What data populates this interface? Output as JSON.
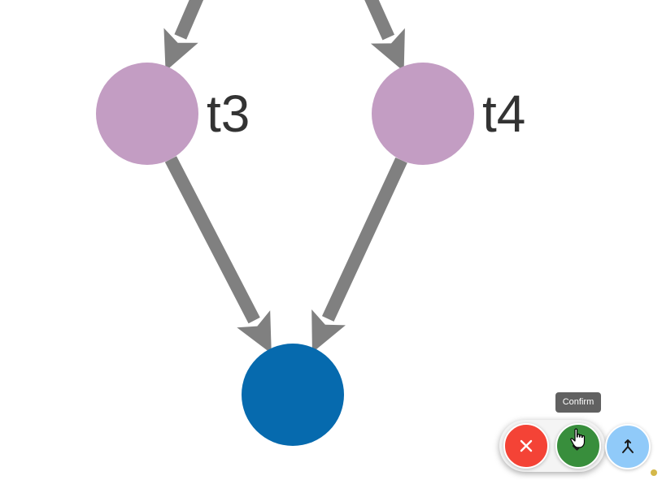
{
  "graph": {
    "nodes": [
      {
        "id": "t3",
        "label": "t3",
        "color": "#c39dc3"
      },
      {
        "id": "t4",
        "label": "t4",
        "color": "#c39dc3"
      },
      {
        "id": "target",
        "label": "",
        "color": "#066aae"
      }
    ],
    "edges": [
      {
        "from": "",
        "to": "t3"
      },
      {
        "from": "",
        "to": "t4"
      },
      {
        "from": "t3",
        "to": "target"
      },
      {
        "from": "t4",
        "to": "target"
      }
    ],
    "edge_color": "#808080"
  },
  "actions": {
    "cancel": {
      "icon": "close-icon",
      "color": "#f44336"
    },
    "confirm": {
      "icon": "check-icon",
      "color": "#388e3c",
      "tooltip": "Confirm"
    },
    "merge": {
      "icon": "merge-icon",
      "color": "#90caf9"
    }
  },
  "status_dot": {
    "color": "#d4b84a"
  }
}
